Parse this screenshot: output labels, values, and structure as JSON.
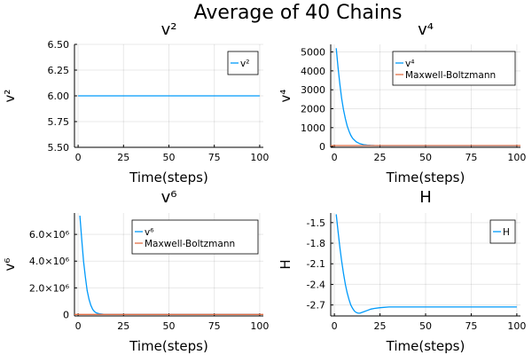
{
  "figure": {
    "title": "Average of 40 Chains"
  },
  "chart_data": [
    {
      "type": "line",
      "title": "v²",
      "xlabel": "Time(steps)",
      "ylabel": "v²",
      "xlim": [
        -2,
        102
      ],
      "ylim": [
        5.5,
        6.5
      ],
      "x_ticks": [
        0,
        25,
        50,
        75,
        100
      ],
      "x_tick_labels": [
        "0",
        "25",
        "50",
        "75",
        "100"
      ],
      "y_ticks": [
        5.5,
        5.75,
        6.0,
        6.25,
        6.5
      ],
      "y_tick_labels": [
        "5.50",
        "5.75",
        "6.00",
        "6.25",
        "6.50"
      ],
      "grid": true,
      "legend_position": "top-right",
      "series": [
        {
          "name": "v²",
          "color": "#009AFA",
          "x": [
            0,
            100
          ],
          "y": [
            6.0,
            6.0
          ]
        }
      ]
    },
    {
      "type": "line",
      "title": "v⁴",
      "xlabel": "Time(steps)",
      "ylabel": "v⁴",
      "xlim": [
        -2,
        102
      ],
      "ylim": [
        -40,
        5400
      ],
      "x_ticks": [
        0,
        25,
        50,
        75,
        100
      ],
      "x_tick_labels": [
        "0",
        "25",
        "50",
        "75",
        "100"
      ],
      "y_ticks": [
        0,
        1000,
        2000,
        3000,
        4000,
        5000
      ],
      "y_tick_labels": [
        "0",
        "1000",
        "2000",
        "3000",
        "4000",
        "5000"
      ],
      "grid": true,
      "legend_position": "top-right",
      "series": [
        {
          "name": "v⁴",
          "color": "#009AFA",
          "x": [
            1,
            2,
            3,
            4,
            5,
            6,
            7,
            8,
            9,
            10,
            12,
            14,
            16,
            18,
            20,
            22,
            25,
            30,
            40,
            50,
            60,
            70,
            80,
            90,
            100
          ],
          "y": [
            5200,
            4200,
            3300,
            2550,
            1950,
            1480,
            1100,
            820,
            600,
            440,
            250,
            150,
            100,
            75,
            62,
            55,
            50,
            50,
            50,
            50,
            50,
            50,
            50,
            50,
            50
          ]
        },
        {
          "name": "Maxwell-Boltzmann",
          "color": "#E26F46",
          "x": [
            -2,
            102
          ],
          "y": [
            54,
            54
          ]
        }
      ]
    },
    {
      "type": "line",
      "title": "v⁶",
      "xlabel": "Time(steps)",
      "ylabel": "v⁶",
      "xlim": [
        -2,
        102
      ],
      "ylim": [
        -100000,
        7600000
      ],
      "x_ticks": [
        0,
        25,
        50,
        75,
        100
      ],
      "x_tick_labels": [
        "0",
        "25",
        "50",
        "75",
        "100"
      ],
      "y_ticks": [
        0,
        2000000,
        4000000,
        6000000
      ],
      "y_tick_labels": [
        "0",
        "2.0×10⁶",
        "4.0×10⁶",
        "6.0×10⁶"
      ],
      "grid": true,
      "legend_position": "top-right",
      "series": [
        {
          "name": "v⁶",
          "color": "#009AFA",
          "x": [
            1,
            2,
            3,
            4,
            5,
            6,
            7,
            8,
            9,
            10,
            12,
            14,
            16,
            20,
            25,
            30,
            40,
            50,
            60,
            70,
            80,
            90,
            100
          ],
          "y": [
            7400000,
            5600000,
            4000000,
            2800000,
            1800000,
            1150000,
            700000,
            400000,
            230000,
            130000,
            50000,
            25000,
            15000,
            10000,
            10000,
            10000,
            10000,
            10000,
            10000,
            10000,
            10000,
            10000,
            10000
          ]
        },
        {
          "name": "Maxwell-Boltzmann",
          "color": "#E26F46",
          "x": [
            -2,
            102
          ],
          "y": [
            15000,
            15000
          ]
        }
      ]
    },
    {
      "type": "line",
      "title": "H",
      "xlabel": "Time(steps)",
      "ylabel": "H",
      "xlim": [
        -2,
        102
      ],
      "ylim": [
        -2.86,
        -1.36
      ],
      "x_ticks": [
        0,
        25,
        50,
        75,
        100
      ],
      "x_tick_labels": [
        "0",
        "25",
        "50",
        "75",
        "100"
      ],
      "y_ticks": [
        -2.7,
        -2.4,
        -2.1,
        -1.8,
        -1.5
      ],
      "y_tick_labels": [
        "-2.7",
        "-2.4",
        "-2.1",
        "-1.8",
        "-1.5"
      ],
      "grid": true,
      "legend_position": "top-right",
      "series": [
        {
          "name": "H",
          "color": "#009AFA",
          "x": [
            1,
            2,
            3,
            4,
            5,
            6,
            7,
            8,
            9,
            10,
            11,
            12,
            13,
            14,
            16,
            18,
            20,
            22,
            25,
            30,
            35,
            40,
            50,
            60,
            70,
            80,
            90,
            100
          ],
          "y": [
            -1.38,
            -1.62,
            -1.86,
            -2.06,
            -2.24,
            -2.4,
            -2.52,
            -2.62,
            -2.7,
            -2.75,
            -2.79,
            -2.81,
            -2.82,
            -2.82,
            -2.8,
            -2.78,
            -2.76,
            -2.75,
            -2.74,
            -2.73,
            -2.73,
            -2.73,
            -2.73,
            -2.73,
            -2.73,
            -2.73,
            -2.73,
            -2.73
          ]
        }
      ]
    }
  ]
}
